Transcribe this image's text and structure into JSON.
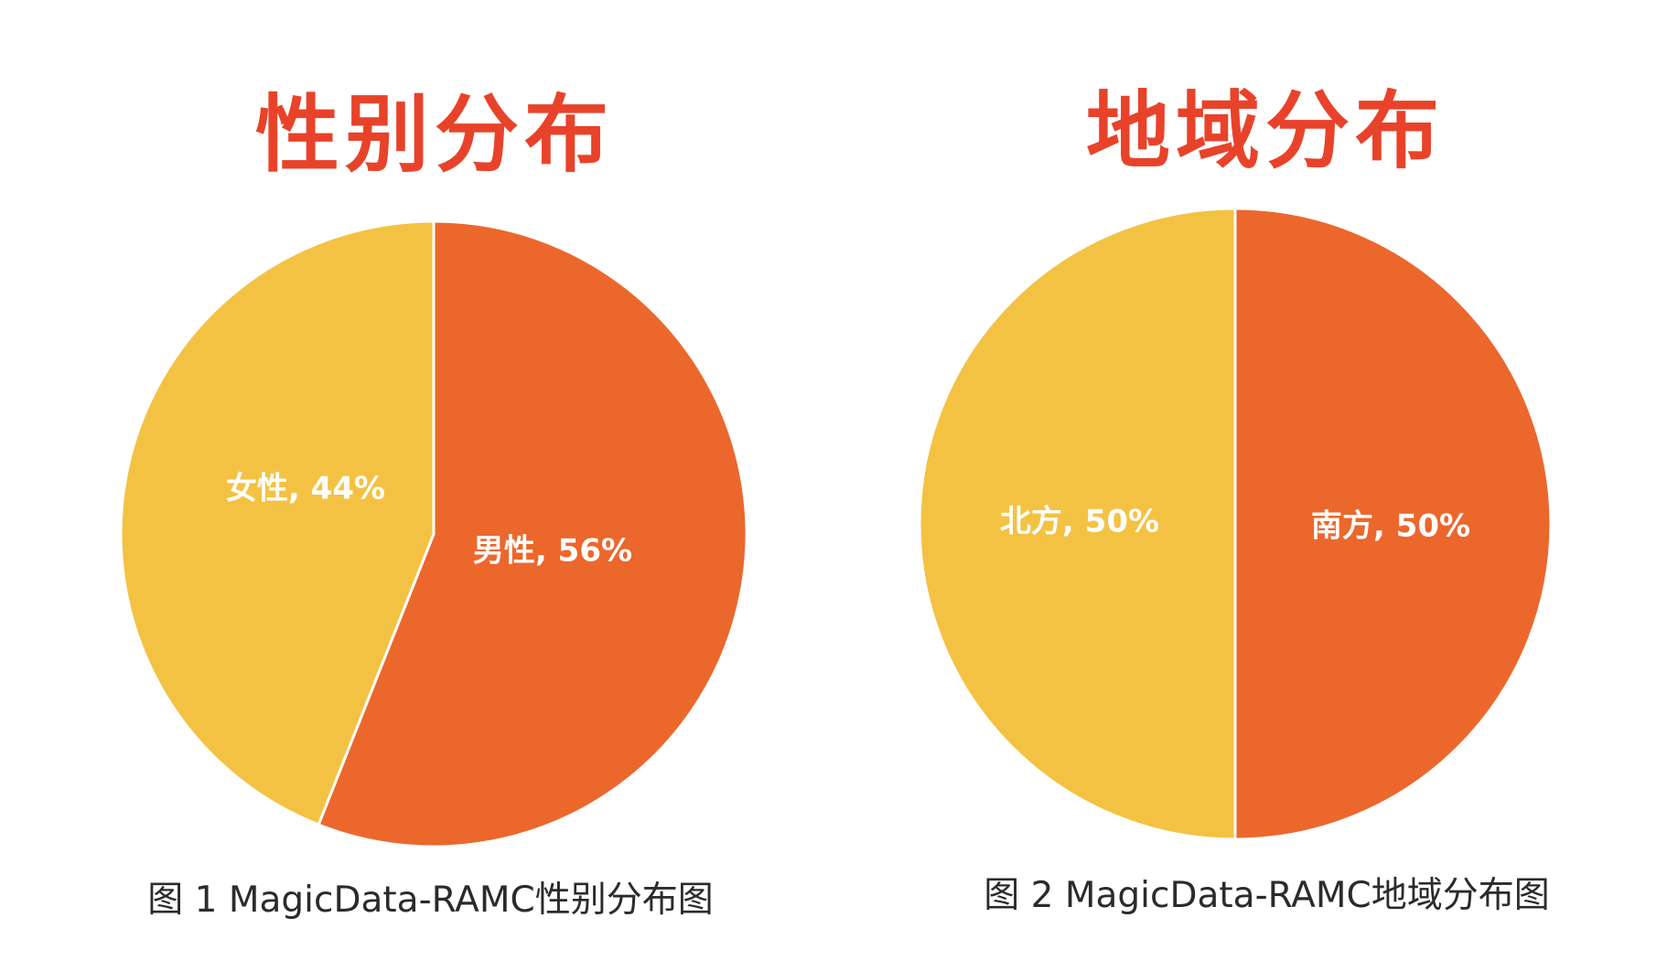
{
  "colors": {
    "title": "#E8432A",
    "slice_primary": "#EC672C",
    "slice_secondary": "#F4C243",
    "divider": "#ffffff",
    "caption": "#2b2b2b"
  },
  "chart_data": [
    {
      "type": "pie",
      "title": "性别分布",
      "caption": "图 1 MagicData-RAMC性别分布图",
      "slices": [
        {
          "name": "男性",
          "value": 56,
          "label": "男性, 56%",
          "color": "#EC672C"
        },
        {
          "name": "女性",
          "value": 44,
          "label": "女性, 44%",
          "color": "#F4C243"
        }
      ]
    },
    {
      "type": "pie",
      "title": "地域分布",
      "caption": "图 2 MagicData-RAMC地域分布图",
      "slices": [
        {
          "name": "南方",
          "value": 50,
          "label": "南方, 50%",
          "color": "#EC672C"
        },
        {
          "name": "北方",
          "value": 50,
          "label": "北方, 50%",
          "color": "#F4C243"
        }
      ]
    }
  ]
}
